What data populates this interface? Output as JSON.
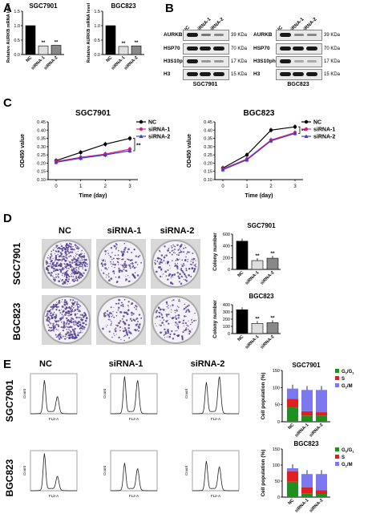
{
  "panels": {
    "a": "A",
    "b": "B",
    "c": "C",
    "d": "D",
    "e": "E"
  },
  "panel_a": {
    "charts": [
      {
        "title": "SGC7901",
        "ylabel": "Relative AURKB mRNA level",
        "categories": [
          "NC",
          "siRNA-1",
          "siRNA-2"
        ],
        "values": [
          1.0,
          0.3,
          0.32
        ],
        "ylim": [
          0,
          1.5
        ],
        "yticks": [
          "0.0",
          "0.5",
          "1.0",
          "1.5"
        ],
        "sig": [
          "",
          "**",
          "**"
        ]
      },
      {
        "title": "BGC823",
        "ylabel": "Relative AURKB mRNA level",
        "categories": [
          "NC",
          "siRNA-1",
          "siRNA-2"
        ],
        "values": [
          1.0,
          0.28,
          0.3
        ],
        "ylim": [
          0,
          1.5
        ],
        "yticks": [
          "0.0",
          "0.5",
          "1.0",
          "1.5"
        ],
        "sig": [
          "",
          "**",
          "**"
        ]
      }
    ]
  },
  "panel_b": {
    "lanes": [
      "NC",
      "siRNA-1",
      "siRNA-2"
    ],
    "rows": [
      "AURKB",
      "HSP70",
      "H3S10ph",
      "H3"
    ],
    "kda": [
      "39 KDa",
      "70 KDa",
      "17 KDa",
      "15 KDa"
    ],
    "cells": [
      "SGC7901",
      "BGC823"
    ]
  },
  "chart_data": [
    {
      "type": "line",
      "title": "SGC7901",
      "xlabel": "Time (day)",
      "ylabel": "OD450 value",
      "x": [
        0,
        1,
        2,
        3
      ],
      "xlim": [
        0,
        3
      ],
      "ylim": [
        0.1,
        0.45
      ],
      "yticks": [
        "0.10",
        "0.15",
        "0.20",
        "0.25",
        "0.30",
        "0.35",
        "0.40",
        "0.45"
      ],
      "series": [
        {
          "name": "NC",
          "values": [
            0.215,
            0.265,
            0.315,
            0.35
          ]
        },
        {
          "name": "siRNA-1",
          "values": [
            0.21,
            0.235,
            0.255,
            0.285
          ]
        },
        {
          "name": "siRNA-2",
          "values": [
            0.205,
            0.23,
            0.25,
            0.275
          ]
        }
      ],
      "annotation": "**"
    },
    {
      "type": "line",
      "title": "BGC823",
      "xlabel": "Time (day)",
      "ylabel": "OD450 value",
      "x": [
        0,
        1,
        2,
        3
      ],
      "xlim": [
        0,
        3
      ],
      "ylim": [
        0.1,
        0.45
      ],
      "yticks": [
        "0.10",
        "0.15",
        "0.20",
        "0.25",
        "0.30",
        "0.35",
        "0.40",
        "0.45"
      ],
      "series": [
        {
          "name": "NC",
          "values": [
            0.17,
            0.25,
            0.4,
            0.42
          ]
        },
        {
          "name": "siRNA-1",
          "values": [
            0.165,
            0.225,
            0.34,
            0.385
          ]
        },
        {
          "name": "siRNA-2",
          "values": [
            0.16,
            0.22,
            0.335,
            0.38
          ]
        }
      ],
      "annotation": "**"
    },
    {
      "type": "bar",
      "title": "SGC7901",
      "ylabel": "Colony number",
      "categories": [
        "NC",
        "siRNA-1",
        "siRNA-2"
      ],
      "values": [
        480,
        150,
        190
      ],
      "ylim": [
        0,
        600
      ],
      "yticks": [
        "0",
        "200",
        "400",
        "600"
      ],
      "sig": [
        "",
        "**",
        "**"
      ]
    },
    {
      "type": "bar",
      "title": "BGC823",
      "ylabel": "Colony number",
      "categories": [
        "NC",
        "siRNA-1",
        "siRNA-2"
      ],
      "values": [
        330,
        140,
        150
      ],
      "ylim": [
        0,
        400
      ],
      "yticks": [
        "0",
        "100",
        "200",
        "300",
        "400"
      ],
      "sig": [
        "",
        "**",
        "**"
      ]
    },
    {
      "type": "bar",
      "title": "SGC7901",
      "ylabel": "Cell population (%)",
      "categories": [
        "NC",
        "siRNA-1",
        "siRNA-2"
      ],
      "ylim": [
        0,
        150
      ],
      "yticks": [
        "0",
        "50",
        "100",
        "150"
      ],
      "series": [
        {
          "name": "G0/G1",
          "values": [
            42,
            18,
            18
          ]
        },
        {
          "name": "S",
          "values": [
            25,
            13,
            10
          ]
        },
        {
          "name": "G2/M",
          "values": [
            30,
            62,
            65
          ]
        }
      ]
    },
    {
      "type": "bar",
      "title": "BGC823",
      "ylabel": "Cell population (%)",
      "categories": [
        "NC",
        "siRNA-1",
        "siRNA-2"
      ],
      "ylim": [
        0,
        150
      ],
      "yticks": [
        "0",
        "50",
        "100",
        "150"
      ],
      "series": [
        {
          "name": "G0/G1",
          "values": [
            48,
            12,
            10
          ]
        },
        {
          "name": "S",
          "values": [
            32,
            18,
            12
          ]
        },
        {
          "name": "G2/M",
          "values": [
            10,
            42,
            50
          ]
        }
      ]
    }
  ],
  "panel_d": {
    "columns": [
      "NC",
      "siRNA-1",
      "siRNA-2"
    ],
    "rows": [
      "SGC7901",
      "BGC823"
    ]
  },
  "panel_e": {
    "columns": [
      "NC",
      "siRNA-1",
      "siRNA-2"
    ],
    "rows": [
      "SGC7901",
      "BGC823"
    ],
    "xaxis": "FL2-A",
    "yaxis": "Count",
    "legend": [
      "G",
      "S",
      "G/M"
    ]
  },
  "colors": {
    "nc": "#000000",
    "sirna1": "#e0207a",
    "sirna2": "#3b3bd8",
    "g1": "#1f8f1f",
    "s": "#e02020",
    "g2m": "#7b78f0"
  }
}
